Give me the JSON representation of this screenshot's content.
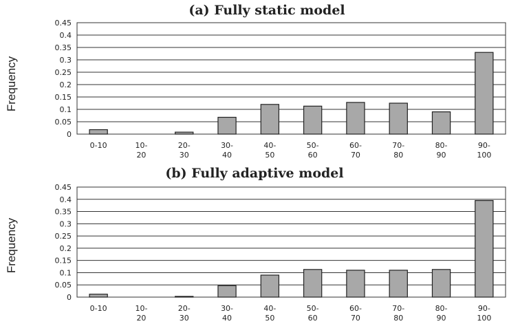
{
  "colors": {
    "bar_fill": "#a8a8a8",
    "bar_stroke": "#222222",
    "grid": "#333333"
  },
  "chart_data": [
    {
      "type": "bar",
      "title": "(a) Fully static model",
      "ylabel": "Frequency",
      "xlabel": "",
      "ylim": [
        0,
        0.45
      ],
      "yticks": [
        "0",
        "0.05",
        "0.1",
        "0.15",
        "0.2",
        "0.25",
        "0.3",
        "0.35",
        "0.4",
        "0.45"
      ],
      "grid": true,
      "categories": [
        [
          "0-10"
        ],
        [
          "10-",
          "20"
        ],
        [
          "20-",
          "30"
        ],
        [
          "30-",
          "40"
        ],
        [
          "40-",
          "50"
        ],
        [
          "50-",
          "60"
        ],
        [
          "60-",
          "70"
        ],
        [
          "70-",
          "80"
        ],
        [
          "80-",
          "90"
        ],
        [
          "90-",
          "100"
        ]
      ],
      "values": [
        0.018,
        0.0,
        0.008,
        0.068,
        0.12,
        0.113,
        0.128,
        0.125,
        0.09,
        0.33
      ]
    },
    {
      "type": "bar",
      "title": "(b) Fully adaptive model",
      "ylabel": "Frequency",
      "xlabel": "",
      "ylim": [
        0,
        0.45
      ],
      "yticks": [
        "0",
        "0.05",
        "0.1",
        "0.15",
        "0.2",
        "0.25",
        "0.3",
        "0.35",
        "0.4",
        "0.45"
      ],
      "grid": true,
      "categories": [
        [
          "0-10"
        ],
        [
          "10-",
          "20"
        ],
        [
          "20-",
          "30"
        ],
        [
          "30-",
          "40"
        ],
        [
          "40-",
          "50"
        ],
        [
          "50-",
          "60"
        ],
        [
          "60-",
          "70"
        ],
        [
          "70-",
          "80"
        ],
        [
          "80-",
          "90"
        ],
        [
          "90-",
          "100"
        ]
      ],
      "values": [
        0.012,
        0.0,
        0.003,
        0.047,
        0.09,
        0.113,
        0.11,
        0.11,
        0.113,
        0.395
      ]
    }
  ]
}
